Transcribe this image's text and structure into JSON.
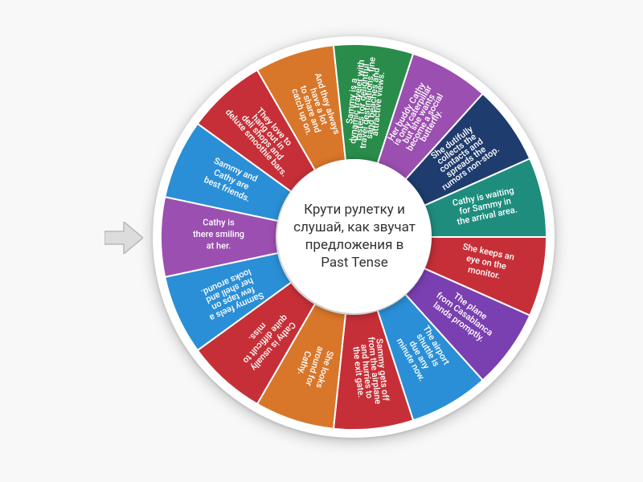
{
  "wheel": {
    "type": "pie",
    "center_text": "Крути рулетку и слушай, как звучат предложения в Past Tense",
    "center_fontsize": 17,
    "center_color": "#333333",
    "background_color": "#f8f8f8",
    "disc_background": "#ffffff",
    "outer_radius": 240,
    "inner_radius": 96,
    "pointer_color": "#dcdcdc",
    "pointer_stroke": "#b8b8b8",
    "shadow": "0 4px 18px rgba(0,0,0,0.25)",
    "slices": [
      {
        "label": "Cathy is there smiling at her.",
        "color": "#9b4fb0",
        "fontsize": 13
      },
      {
        "label": "Sammy and Cathy are best friends.",
        "color": "#2a8fd6",
        "fontsize": 12
      },
      {
        "label": "They love to hang out in deli shops and deluxe smoothie bars.",
        "color": "#c62f37",
        "fontsize": 9
      },
      {
        "label": "And they always have a lot to share and catch up on.",
        "color": "#d8762a",
        "fontsize": 10
      },
      {
        "label": "Sammy is a dynamic traveler with tastes for delightful travel destinations, fine sand beaches and attractive views.",
        "color": "#2a8c4a",
        "fontsize": 6
      },
      {
        "label": "Her buddy Cathy is only caterpillar but she wants become a social butterfly.",
        "color": "#9b4fb0",
        "fontsize": 8
      },
      {
        "label": "She dutifully collects the contacts and spreads the rumors non-stop.",
        "color": "#1f3c6e",
        "fontsize": 9
      },
      {
        "label": "Cathy is waiting for Sammy in the arrival area.",
        "color": "#1f8d7e",
        "fontsize": 11
      },
      {
        "label": "She keeps an eye on the monitor.",
        "color": "#c62f37",
        "fontsize": 12
      },
      {
        "label": "The plane from Casablanca lands promptly.",
        "color": "#7a3fb0",
        "fontsize": 11
      },
      {
        "label": "The airport shuttle is due any minute now.",
        "color": "#2a8fd6",
        "fontsize": 11
      },
      {
        "label": "Sammy gets off from the airplane and hurries to the exit gate.",
        "color": "#c62f37",
        "fontsize": 9
      },
      {
        "label": "She looks around for Cathy.",
        "color": "#d8762a",
        "fontsize": 12
      },
      {
        "label": "Cathy is usually quite difficult to miss.",
        "color": "#c62f37",
        "fontsize": 12
      },
      {
        "label": "Sammy feels a few taps on her shell and looks around.",
        "color": "#2a8fd6",
        "fontsize": 10
      }
    ]
  }
}
